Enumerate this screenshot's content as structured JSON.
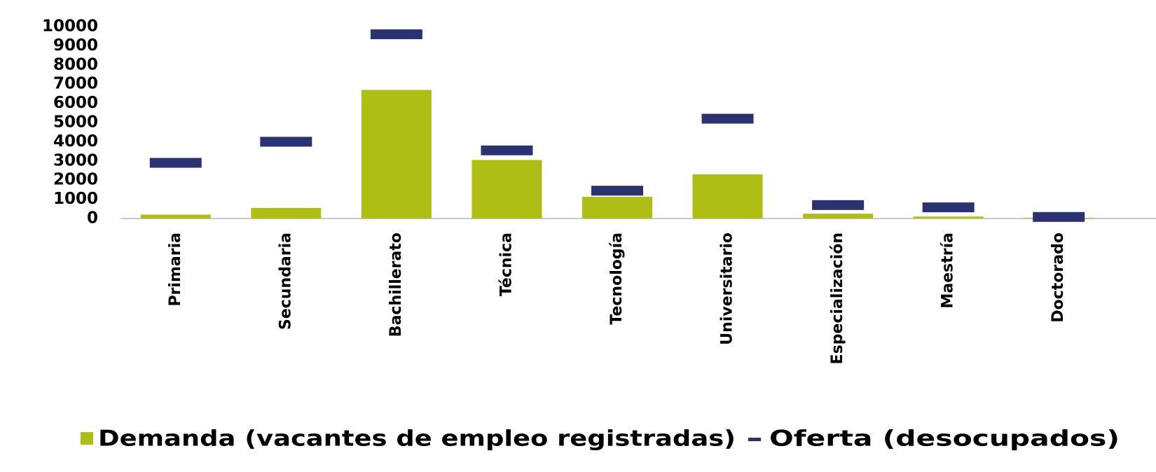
{
  "chart_data": {
    "type": "bar_dash",
    "categories": [
      "Primaria",
      "Secundaria",
      "Bachillerato",
      "Técnica",
      "Tecnología",
      "Universitario",
      "Especialización",
      "Maestría",
      "Doctorado"
    ],
    "series": [
      {
        "name": "Demanda (vacantes de empleo registradas)",
        "color": "#afbe14",
        "values": [
          200,
          550,
          6700,
          3050,
          1130,
          2300,
          250,
          100,
          30
        ]
      },
      {
        "name": "Oferta (desocupados)",
        "color": "#2b3271",
        "values": [
          2900,
          4000,
          9600,
          3550,
          1450,
          5200,
          700,
          580,
          80
        ]
      }
    ],
    "ylim": [
      0,
      10000
    ],
    "yticks": [
      0,
      1000,
      2000,
      3000,
      4000,
      5000,
      6000,
      7000,
      8000,
      9000,
      10000
    ],
    "legend": "bottom"
  }
}
